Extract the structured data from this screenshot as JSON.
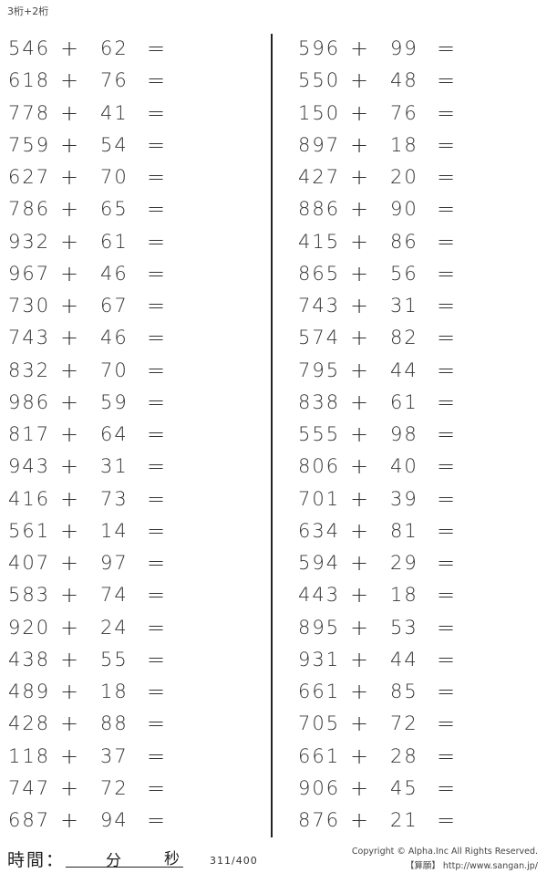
{
  "title": "3桁+2桁",
  "operator": "+",
  "equals": "=",
  "left_problems": [
    [
      "546",
      "62"
    ],
    [
      "618",
      "76"
    ],
    [
      "778",
      "41"
    ],
    [
      "759",
      "54"
    ],
    [
      "627",
      "70"
    ],
    [
      "786",
      "65"
    ],
    [
      "932",
      "61"
    ],
    [
      "967",
      "46"
    ],
    [
      "730",
      "67"
    ],
    [
      "743",
      "46"
    ],
    [
      "832",
      "70"
    ],
    [
      "986",
      "59"
    ],
    [
      "817",
      "64"
    ],
    [
      "943",
      "31"
    ],
    [
      "416",
      "73"
    ],
    [
      "561",
      "14"
    ],
    [
      "407",
      "97"
    ],
    [
      "583",
      "74"
    ],
    [
      "920",
      "24"
    ],
    [
      "438",
      "55"
    ],
    [
      "489",
      "18"
    ],
    [
      "428",
      "88"
    ],
    [
      "118",
      "37"
    ],
    [
      "747",
      "72"
    ],
    [
      "687",
      "94"
    ]
  ],
  "right_problems": [
    [
      "596",
      "99"
    ],
    [
      "550",
      "48"
    ],
    [
      "150",
      "76"
    ],
    [
      "897",
      "18"
    ],
    [
      "427",
      "20"
    ],
    [
      "886",
      "90"
    ],
    [
      "415",
      "86"
    ],
    [
      "865",
      "56"
    ],
    [
      "743",
      "31"
    ],
    [
      "574",
      "82"
    ],
    [
      "795",
      "44"
    ],
    [
      "838",
      "61"
    ],
    [
      "555",
      "98"
    ],
    [
      "806",
      "40"
    ],
    [
      "701",
      "39"
    ],
    [
      "634",
      "81"
    ],
    [
      "594",
      "29"
    ],
    [
      "443",
      "18"
    ],
    [
      "895",
      "53"
    ],
    [
      "931",
      "44"
    ],
    [
      "661",
      "85"
    ],
    [
      "705",
      "72"
    ],
    [
      "661",
      "28"
    ],
    [
      "906",
      "45"
    ],
    [
      "876",
      "21"
    ]
  ],
  "footer": {
    "time_label": "時間：",
    "minutes_label": "分",
    "seconds_label": "秒",
    "page_number": "311/400",
    "copyright": "Copyright © Alpha.Inc All Rights Reserved.",
    "site": "【算願】 http://www.sangan.jp/"
  }
}
